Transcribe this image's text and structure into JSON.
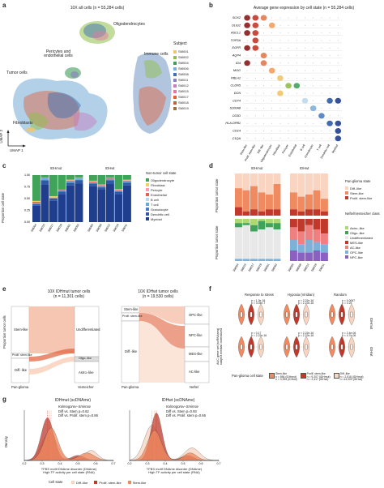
{
  "panels": {
    "a": {
      "letter": "a",
      "title": "10X all cells (n = 55,284 cells)",
      "clusters": {
        "oligodendrocytes": "Oligodendrocytes",
        "pericytes": "Pericytes and endothelial cells",
        "tumor": "Tumor cells",
        "fibroblasts": "Fibroblasts",
        "immune": "Immune cells"
      },
      "legend_title": "Subject",
      "subjects": [
        {
          "name": "SM001",
          "color": "#f0c56b"
        },
        {
          "name": "SM002",
          "color": "#8fbf4a"
        },
        {
          "name": "SM004",
          "color": "#3f9c5a"
        },
        {
          "name": "SM006",
          "color": "#7fb0d8"
        },
        {
          "name": "SM008",
          "color": "#3e6fb0"
        },
        {
          "name": "SM011",
          "color": "#8a7fc0"
        },
        {
          "name": "SM012",
          "color": "#c47fc0"
        },
        {
          "name": "SM015",
          "color": "#e07aa0"
        },
        {
          "name": "SM017",
          "color": "#e0603a"
        },
        {
          "name": "SM018",
          "color": "#c0603a"
        },
        {
          "name": "SM019",
          "color": "#9a7040"
        }
      ],
      "umap1": "UMAP 1",
      "umap2": "UMAP 2"
    },
    "b": {
      "letter": "b",
      "title": "Average gene expression by cell state (n = 55,284 cells)",
      "genes": [
        "SOX2",
        "OLIG2",
        "ASCL1",
        "TOP2A",
        "EGFR",
        "AQP4",
        "ID4",
        "MOG",
        "PBLH1",
        "CLDN5",
        "DCN",
        "CD74",
        "S100A8",
        "CD3D",
        "HLA-DPB1",
        "CD14",
        "C1QA"
      ],
      "cell_states": [
        "Stem-like",
        "Prolif. stem-like",
        "Diff.-like",
        "Oligodendrocyte",
        "Fibroblast",
        "Pericyte",
        "Endothelial",
        "B cell",
        "Granulocyte",
        "T cell",
        "Dendritic cell",
        "Myeloid"
      ]
    },
    "c": {
      "letter": "c",
      "groups": [
        "IDHmut",
        "IDHwt"
      ],
      "ylabel": "Proportion cell state",
      "yticks": [
        "0.00",
        "0.25",
        "0.50",
        "0.75",
        "1.00"
      ],
      "legend_title": "Non-tumor cell state",
      "legend": [
        {
          "name": "Oligodendrocyte",
          "color": "#3fa35a"
        },
        {
          "name": "Fibroblast",
          "color": "#f0d060"
        },
        {
          "name": "Pericyte",
          "color": "#f4a0b0"
        },
        {
          "name": "Endothelial",
          "color": "#e86050"
        },
        {
          "name": "B cell",
          "color": "#bcd8ec"
        },
        {
          "name": "T cell",
          "color": "#6aaad8"
        },
        {
          "name": "Granulocyte",
          "color": "#4b7ec0"
        },
        {
          "name": "Dendritic cell",
          "color": "#2e5aa8"
        },
        {
          "name": "Myeloid",
          "color": "#1f3f8e"
        }
      ],
      "samples_mut": [
        "SM004",
        "SM015",
        "SM017",
        "SM019",
        "SM001",
        "SM002"
      ],
      "samples_wt": [
        "SM006",
        "SM008",
        "SM012",
        "SM018",
        "SM011"
      ]
    },
    "d": {
      "letter": "d",
      "groups": [
        "IDHmut",
        "IDHwt"
      ],
      "ylabel_top": "Proportion tumor state",
      "ylabel_bottom": "Proportion tumor state",
      "legend1_title": "Pan-glioma state",
      "legend1": [
        {
          "name": "Diff.-like",
          "color": "#f9d4c0"
        },
        {
          "name": "Stem-like",
          "color": "#f08a60"
        },
        {
          "name": "Prolif. stem-like",
          "color": "#c0392b"
        }
      ],
      "legend2_title": "Neftel/Venteicher class",
      "legend2": [
        {
          "name": "Astro.-like",
          "color": "#b0d870"
        },
        {
          "name": "Oligo.-like",
          "color": "#3fa35a"
        },
        {
          "name": "Undifferentiated",
          "color": "#e8e8e8"
        },
        {
          "name": "MES-like",
          "color": "#c0392b"
        },
        {
          "name": "AC-like",
          "color": "#f08080"
        },
        {
          "name": "OPC-like",
          "color": "#7fb0d8"
        },
        {
          "name": "NPC-like",
          "color": "#8a60c0"
        }
      ],
      "samples_mut": [
        "SM004",
        "SM015",
        "SM017",
        "SM019",
        "SM001",
        "SM002"
      ],
      "samples_wt": [
        "SM006",
        "SM008",
        "SM012",
        "SM018",
        "SM011"
      ]
    },
    "e": {
      "letter": "e",
      "left_title": "10X IDHmut tumor cells",
      "left_n": "(n = 11,301 cells)",
      "right_title": "10X IDHwt tumor cells",
      "right_n": "(n = 19,530 cells)",
      "ylabel": "Proportion tumor cells",
      "left_states": [
        "Stem-like",
        "Prolif. stem-like",
        "Diff.-like"
      ],
      "left_targets": [
        "Undifferentiated",
        "Oligo.-like",
        "Astro.-like"
      ],
      "right_states": [
        "Stem-like",
        "Prolif. stem-like",
        "Diff.-like"
      ],
      "right_targets": [
        "OPC-like",
        "NPC-like",
        "MES-like",
        "AC-like"
      ],
      "axis_left": [
        "Pan-glioma",
        "Venteicher"
      ],
      "axis_right": [
        "Pan-glioma",
        "Neftel"
      ]
    },
    "f": {
      "letter": "f",
      "columns": [
        "Response to stress",
        "Hypoxia (Viridian)",
        "Random"
      ],
      "row_labels": [
        "IDHmut",
        "IDHwt"
      ],
      "ylabel": "AUC gene set (scRNAseq)\nsubject median normalized",
      "stats_row1": [
        "p = 1.3e-16\np = 3.04e-7",
        "p < 2.22e-16\np = 2.22e-16",
        "p = 0.0067\np = 0.25"
      ],
      "stats_row2": [
        "p = 0.17\np < 2.22e-16",
        "p < 2.22e-16\np = 2.22e-16",
        "p = 2.4e-06\np = 4.7e-06"
      ],
      "xlabel": "Pan-glioma cell state",
      "n_legend": [
        {
          "label": "Stem-like",
          "n": "n = 556 (IDHmut)\nn = 3,994 (IDHwt)"
        },
        {
          "label": "Prolif. stem-like",
          "n": "n = 9,207 (IDHmut)\nn = 2,417 (IDHwt)"
        },
        {
          "label": "Diff.-like",
          "n": "n = 2,518 (IDHmut)\nn =14,009 (IDHwt)"
        }
      ]
    },
    "g": {
      "letter": "g",
      "left_title": "IDHmut (scDNAme)",
      "right_title": "IDHwt (scDNAme)",
      "ks_title": "Kolmogorov–Smirnov",
      "left_ks": [
        "Diff vs. Stem p=0.62",
        "Diff vs. Prolif. stem p=0.86"
      ],
      "right_ks": [
        "Diff vs. Stem p=0.93",
        "Diff vs. Prolif. stem p=0.66"
      ],
      "ylabel": "Density",
      "xlabel": "TFBS motif DNAme disorder (DNAme)\nHigh TF activity per cell state (RNA)",
      "xticks": [
        "0.2",
        "0.3",
        "0.4",
        "0.5",
        "0.6",
        "0.7"
      ],
      "legend_title": "Cell state",
      "legend": [
        {
          "name": "Diff.-like",
          "color": "#f9d4c0"
        },
        {
          "name": "Prolif. stem-like",
          "color": "#c0392b"
        },
        {
          "name": "Stem-like",
          "color": "#f08a60"
        }
      ]
    }
  }
}
